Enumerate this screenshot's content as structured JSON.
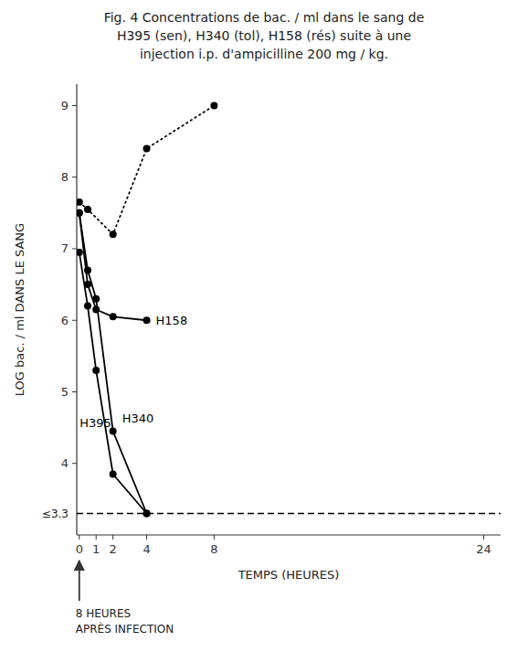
{
  "chart_data": {
    "type": "line",
    "title": [
      "Fig. 4  Concentrations de bac. / ml dans le sang de",
      "H395 (sen), H340 (tol), H158 (rés) suite à une",
      "injection i.p. d'ampicilline 200 mg / kg."
    ],
    "xlabel": "TEMPS (HEURES)",
    "ylabel": "LOG bac. / ml DANS LE SANG",
    "xlim": [
      -0.15,
      25
    ],
    "ylim": [
      3.0,
      9.3
    ],
    "xticks": [
      0,
      1,
      2,
      4,
      8,
      24
    ],
    "yticks": [
      4,
      5,
      6,
      7,
      8,
      9
    ],
    "grid": false,
    "series": [
      {
        "x": [
          0,
          0.5,
          2.0,
          4.0,
          8.0
        ],
        "values": [
          7.65,
          7.55,
          7.2,
          8.4,
          9.0
        ],
        "color": "#000000",
        "line_style": "dotted",
        "marker": "circle"
      },
      {
        "name": "H340",
        "x": [
          0,
          0.5,
          1.0,
          2.0,
          4.0
        ],
        "values": [
          7.5,
          6.7,
          6.3,
          4.45,
          3.3
        ],
        "color": "#000000",
        "line_style": "solid",
        "marker": "circle"
      },
      {
        "name": "H395",
        "x": [
          0,
          0.5,
          1.0,
          2.0,
          4.0
        ],
        "values": [
          6.95,
          6.2,
          5.3,
          3.85,
          3.3
        ],
        "color": "#000000",
        "line_style": "solid",
        "marker": "circle"
      },
      {
        "name": "H158",
        "x": [
          0,
          0.5,
          1.0,
          2.0,
          4.0
        ],
        "values": [
          7.5,
          6.5,
          6.15,
          6.05,
          6.0
        ],
        "color": "#000000",
        "line_style": "solid",
        "marker": "circle"
      }
    ],
    "reference_line": {
      "y": 3.3,
      "label": "≤3.3",
      "line_style": "dashed",
      "color": "#000000"
    },
    "annotation": {
      "x": 0,
      "lines": [
        "8 HEURES",
        "APRÈS INFECTION"
      ]
    }
  }
}
